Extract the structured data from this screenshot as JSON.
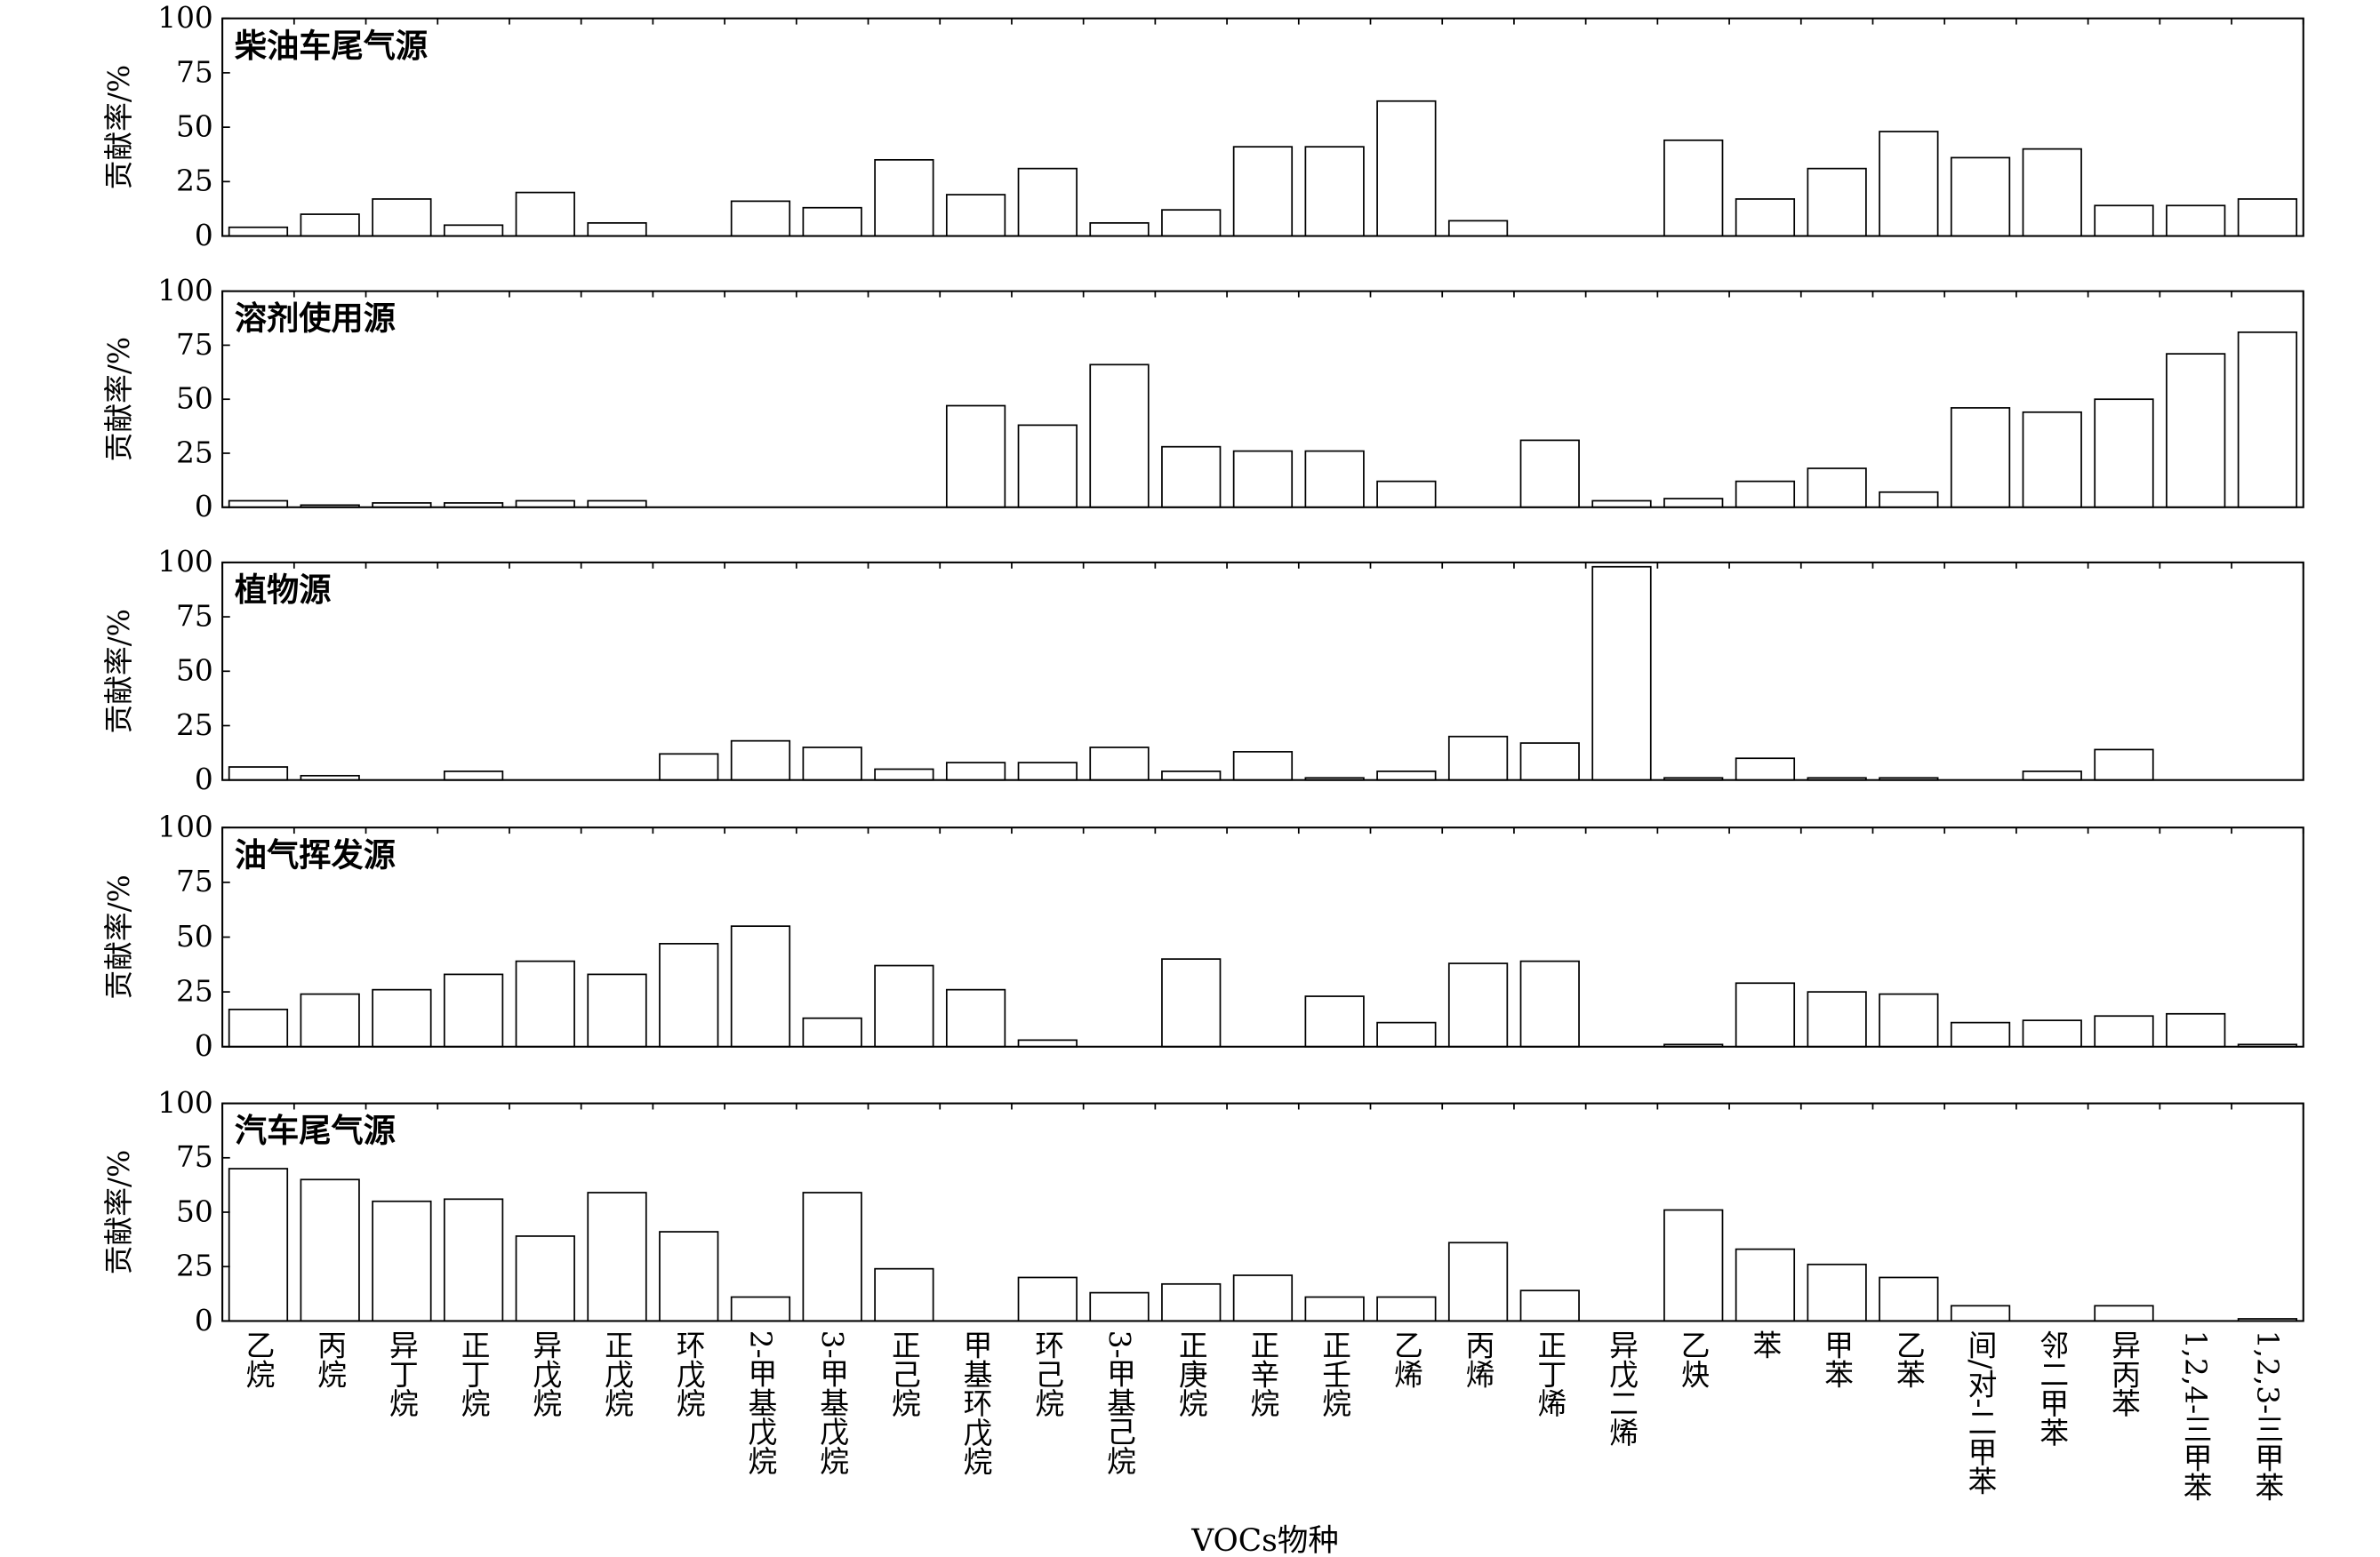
{
  "chart_data": [
    {
      "type": "bar",
      "title": "柴油车尾气源",
      "ylabel": "贡献率/%",
      "ylim": [
        0,
        100
      ],
      "yticks": [
        0,
        25,
        50,
        75,
        100
      ],
      "values": [
        4,
        10,
        17,
        5,
        20,
        6,
        0,
        16,
        13,
        35,
        19,
        31,
        6,
        12,
        41,
        41,
        62,
        7,
        0,
        0,
        44,
        17,
        31,
        48,
        36,
        40,
        14,
        14,
        17
      ]
    },
    {
      "type": "bar",
      "title": "溶剂使用源",
      "ylabel": "贡献率/%",
      "ylim": [
        0,
        100
      ],
      "yticks": [
        0,
        25,
        50,
        75,
        100
      ],
      "values": [
        3,
        1,
        2,
        2,
        3,
        3,
        0,
        0,
        0,
        0,
        47,
        38,
        66,
        28,
        26,
        26,
        12,
        0,
        31,
        3,
        4,
        12,
        18,
        7,
        46,
        44,
        50,
        71,
        81
      ]
    },
    {
      "type": "bar",
      "title": "植物源",
      "ylabel": "贡献率/%",
      "ylim": [
        0,
        100
      ],
      "yticks": [
        0,
        25,
        50,
        75,
        100
      ],
      "values": [
        6,
        2,
        0,
        4,
        0,
        0,
        12,
        18,
        15,
        5,
        8,
        8,
        15,
        4,
        13,
        1,
        4,
        20,
        17,
        98,
        1,
        10,
        1,
        1,
        0,
        4,
        14,
        0,
        0
      ]
    },
    {
      "type": "bar",
      "title": "油气挥发源",
      "ylabel": "贡献率/%",
      "ylim": [
        0,
        100
      ],
      "yticks": [
        0,
        25,
        50,
        75,
        100
      ],
      "values": [
        17,
        24,
        26,
        33,
        39,
        33,
        47,
        55,
        13,
        37,
        26,
        3,
        0,
        40,
        0,
        23,
        11,
        38,
        39,
        0,
        1,
        29,
        25,
        24,
        11,
        12,
        14,
        15,
        1
      ]
    },
    {
      "type": "bar",
      "title": "汽车尾气源",
      "ylabel": "贡献率/%",
      "ylim": [
        0,
        100
      ],
      "yticks": [
        0,
        25,
        50,
        75,
        100
      ],
      "values": [
        70,
        65,
        55,
        56,
        39,
        59,
        41,
        11,
        59,
        24,
        0,
        20,
        13,
        17,
        21,
        11,
        11,
        36,
        14,
        0,
        51,
        33,
        26,
        20,
        7,
        0,
        7,
        0,
        1
      ]
    }
  ],
  "categories": [
    "乙烷",
    "丙烷",
    "异丁烷",
    "正丁烷",
    "异戊烷",
    "正戊烷",
    "环戊烷",
    "2-甲基戊烷",
    "3-甲基戊烷",
    "正己烷",
    "甲基环戊烷",
    "环己烷",
    "3-甲基己烷",
    "正庚烷",
    "正辛烷",
    "正壬烷",
    "乙烯",
    "丙烯",
    "正丁烯",
    "异戊二烯",
    "乙炔",
    "苯",
    "甲苯",
    "乙苯",
    "间/对-二甲苯",
    "邻二甲苯",
    "异丙苯",
    "1,2,4-三甲苯",
    "1,2,3-三甲苯"
  ],
  "xlabel": "VOCs物种",
  "colors": {
    "bar_fill": "#ffffff",
    "bar_stroke": "#000000"
  }
}
